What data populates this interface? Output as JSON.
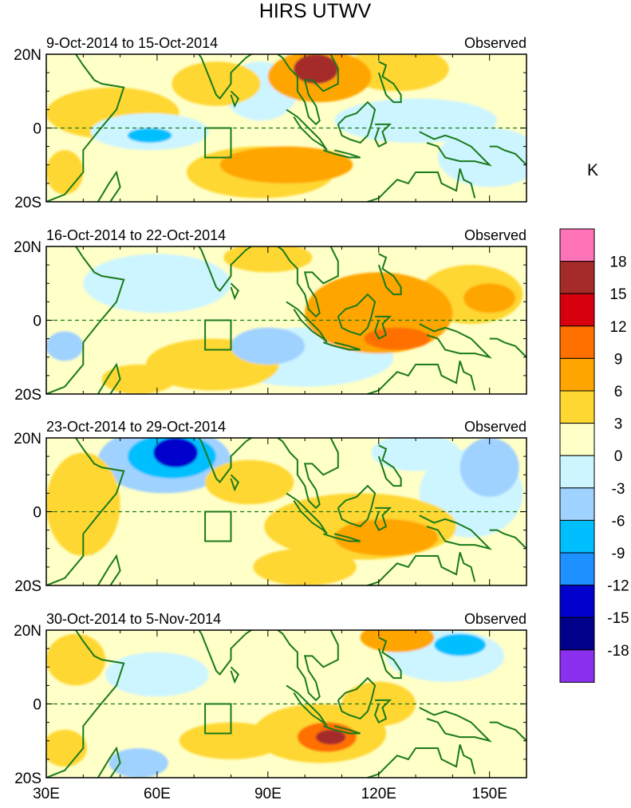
{
  "chart_data": {
    "type": "heatmap",
    "title": "HIRS UTWV",
    "unit_label": "K",
    "x_range": [
      30,
      160
    ],
    "y_range": [
      -20,
      20
    ],
    "x_ticks": [
      {
        "value": 30,
        "label": "30E"
      },
      {
        "value": 60,
        "label": "60E"
      },
      {
        "value": 90,
        "label": "90E"
      },
      {
        "value": 120,
        "label": "120E"
      },
      {
        "value": 150,
        "label": "150E"
      }
    ],
    "y_ticks": [
      {
        "value": 20,
        "label": "20N"
      },
      {
        "value": 0,
        "label": "0"
      },
      {
        "value": -20,
        "label": "20S"
      }
    ],
    "box_region_lon_lat": [
      [
        73,
        0
      ],
      [
        80,
        0
      ],
      [
        80,
        -8
      ],
      [
        73,
        -8
      ]
    ],
    "colorbar": {
      "levels": [
        "18",
        "15",
        "12",
        "9",
        "6",
        "3",
        "0",
        "-3",
        "-6",
        "-9",
        "-12",
        "-15",
        "-18"
      ],
      "colors": [
        "#ff73b7",
        "#a52a2a",
        "#d7000f",
        "#ff7000",
        "#ffa500",
        "#ffd733",
        "#ffffc8",
        "#cdf5ff",
        "#a0d2ff",
        "#00bfff",
        "#1e90ff",
        "#0000cd",
        "#00008b",
        "#8c30ef"
      ]
    },
    "panels": [
      {
        "period": "9-Oct-2014 to 15-Oct-2014",
        "label": "Observed",
        "anomalies": [
          {
            "lon": 103,
            "lat": 16,
            "value": 15,
            "rx": 6,
            "ry": 4
          },
          {
            "lon": 104,
            "lat": 14,
            "value": 8,
            "rx": 14,
            "ry": 7
          },
          {
            "lon": 95,
            "lat": -10,
            "value": 6,
            "rx": 18,
            "ry": 5
          },
          {
            "lon": 88,
            "lat": -12,
            "value": 4,
            "rx": 20,
            "ry": 7
          },
          {
            "lon": 76,
            "lat": 12,
            "value": 4,
            "rx": 12,
            "ry": 6
          },
          {
            "lon": 48,
            "lat": 4,
            "value": 3,
            "rx": 18,
            "ry": 7
          },
          {
            "lon": 58,
            "lat": -2,
            "value": -7,
            "rx": 6,
            "ry": 2
          },
          {
            "lon": 58,
            "lat": -1,
            "value": -3,
            "rx": 16,
            "ry": 5
          },
          {
            "lon": 130,
            "lat": 2,
            "value": -3,
            "rx": 22,
            "ry": 6
          },
          {
            "lon": 125,
            "lat": 16,
            "value": 3,
            "rx": 14,
            "ry": 6
          },
          {
            "lon": 35,
            "lat": -12,
            "value": 5,
            "rx": 5,
            "ry": 6
          },
          {
            "lon": 150,
            "lat": -8,
            "value": -3,
            "rx": 14,
            "ry": 8
          },
          {
            "lon": 88,
            "lat": 10,
            "value": -3,
            "rx": 10,
            "ry": 8
          }
        ]
      },
      {
        "period": "16-Oct-2014 to 22-Oct-2014",
        "label": "Observed",
        "anomalies": [
          {
            "lon": 120,
            "lat": 2,
            "value": 6,
            "rx": 20,
            "ry": 11
          },
          {
            "lon": 125,
            "lat": -5,
            "value": 9,
            "rx": 9,
            "ry": 3
          },
          {
            "lon": 150,
            "lat": 6,
            "value": 8,
            "rx": 7,
            "ry": 4
          },
          {
            "lon": 145,
            "lat": 7,
            "value": 4,
            "rx": 14,
            "ry": 8
          },
          {
            "lon": 75,
            "lat": -12,
            "value": 4,
            "rx": 18,
            "ry": 7
          },
          {
            "lon": 90,
            "lat": -7,
            "value": -5,
            "rx": 10,
            "ry": 5
          },
          {
            "lon": 100,
            "lat": -10,
            "value": -3,
            "rx": 24,
            "ry": 8
          },
          {
            "lon": 60,
            "lat": 10,
            "value": -3,
            "rx": 20,
            "ry": 8
          },
          {
            "lon": 35,
            "lat": -7,
            "value": -6,
            "rx": 5,
            "ry": 4
          },
          {
            "lon": 55,
            "lat": -16,
            "value": 4,
            "rx": 10,
            "ry": 4
          },
          {
            "lon": 90,
            "lat": 17,
            "value": 4,
            "rx": 12,
            "ry": 4
          }
        ]
      },
      {
        "period": "23-Oct-2014 to 29-Oct-2014",
        "label": "Observed",
        "anomalies": [
          {
            "lon": 65,
            "lat": 16,
            "value": -13,
            "rx": 6,
            "ry": 4
          },
          {
            "lon": 64,
            "lat": 15,
            "value": -8,
            "rx": 12,
            "ry": 6
          },
          {
            "lon": 62,
            "lat": 14,
            "value": -4,
            "rx": 18,
            "ry": 9
          },
          {
            "lon": 122,
            "lat": -7,
            "value": 8,
            "rx": 14,
            "ry": 5
          },
          {
            "lon": 115,
            "lat": -4,
            "value": 5,
            "rx": 26,
            "ry": 9
          },
          {
            "lon": 150,
            "lat": 12,
            "value": -6,
            "rx": 8,
            "ry": 8
          },
          {
            "lon": 145,
            "lat": 5,
            "value": -3,
            "rx": 14,
            "ry": 12
          },
          {
            "lon": 40,
            "lat": 2,
            "value": 5,
            "rx": 10,
            "ry": 14
          },
          {
            "lon": 85,
            "lat": 8,
            "value": 4,
            "rx": 12,
            "ry": 6
          },
          {
            "lon": 100,
            "lat": -15,
            "value": 3,
            "rx": 14,
            "ry": 5
          },
          {
            "lon": 130,
            "lat": 16,
            "value": -3,
            "rx": 12,
            "ry": 5
          }
        ]
      },
      {
        "period": "30-Oct-2014 to 5-Nov-2014",
        "label": "Observed",
        "anomalies": [
          {
            "lon": 107,
            "lat": -9,
            "value": 15,
            "rx": 4,
            "ry": 2
          },
          {
            "lon": 106,
            "lat": -9,
            "value": 10,
            "rx": 8,
            "ry": 4
          },
          {
            "lon": 104,
            "lat": -8,
            "value": 5,
            "rx": 18,
            "ry": 8
          },
          {
            "lon": 142,
            "lat": 16,
            "value": -7,
            "rx": 7,
            "ry": 3
          },
          {
            "lon": 138,
            "lat": 13,
            "value": -3,
            "rx": 16,
            "ry": 7
          },
          {
            "lon": 55,
            "lat": -16,
            "value": -6,
            "rx": 8,
            "ry": 4
          },
          {
            "lon": 60,
            "lat": 8,
            "value": -3,
            "rx": 14,
            "ry": 6
          },
          {
            "lon": 38,
            "lat": 12,
            "value": 5,
            "rx": 8,
            "ry": 7
          },
          {
            "lon": 125,
            "lat": 18,
            "value": 6,
            "rx": 10,
            "ry": 4
          },
          {
            "lon": 80,
            "lat": -10,
            "value": 3,
            "rx": 14,
            "ry": 5
          },
          {
            "lon": 120,
            "lat": 0,
            "value": 4,
            "rx": 10,
            "ry": 6
          },
          {
            "lon": 35,
            "lat": -12,
            "value": 4,
            "rx": 6,
            "ry": 5
          }
        ]
      }
    ]
  }
}
